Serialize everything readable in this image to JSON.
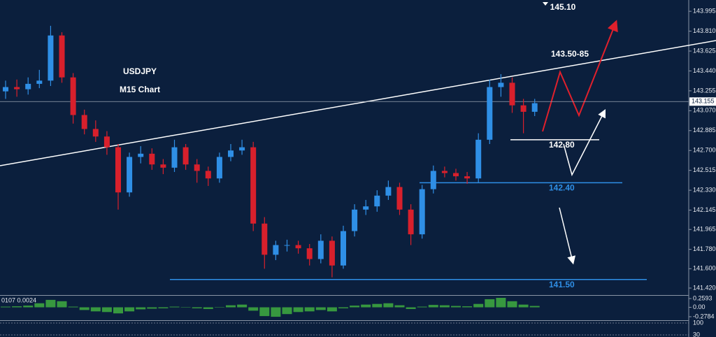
{
  "chart_data": {
    "type": "candlestick",
    "annotations": {
      "symbol": "USDJPY",
      "timeframe": "M15 Chart",
      "target_top": "145.10",
      "resistance": "143.50-85"
    },
    "current_price": 143.155,
    "levels": [
      {
        "value": 142.8,
        "label": "142.80"
      },
      {
        "value": 142.4,
        "label": "142.40"
      },
      {
        "value": 141.5,
        "label": "141.50"
      }
    ],
    "ylim": [
      141.355,
      144.1
    ],
    "yticks": [
      143.995,
      {
        "value": 143.81,
        "label": "143.810"
      },
      143.625,
      {
        "value": 143.44,
        "label": "143.440"
      },
      143.255,
      {
        "value": 143.07,
        "label": "143.070"
      },
      142.885,
      {
        "value": 142.7,
        "label": "142.700"
      },
      142.515,
      {
        "value": 142.33,
        "label": "142.330"
      },
      142.145,
      141.965,
      {
        "value": 141.78,
        "label": "141.780"
      },
      {
        "value": 141.6,
        "label": "141.600"
      },
      {
        "value": 141.42,
        "label": "141.420"
      }
    ],
    "up_color": "#2f8fe6",
    "down_color": "#d8202c",
    "open": [
      143.25,
      143.29,
      143.27,
      143.32,
      143.35,
      143.77,
      143.38,
      143.03,
      142.9,
      142.83,
      142.73,
      142.31,
      142.64,
      142.67,
      142.57,
      142.54,
      142.73,
      142.57,
      142.51,
      142.44,
      142.64,
      142.7,
      142.73,
      142.02,
      141.73,
      141.82,
      141.82,
      141.79,
      141.69,
      141.86,
      141.63,
      141.95,
      142.15,
      142.18,
      142.28,
      142.36,
      142.15,
      141.92,
      142.34,
      142.51,
      142.49,
      142.46,
      142.44,
      142.8,
      143.29,
      143.33,
      143.12,
      143.06
    ],
    "high": [
      143.35,
      143.36,
      143.38,
      143.45,
      143.86,
      143.8,
      143.42,
      143.08,
      142.98,
      142.88,
      142.76,
      142.68,
      142.74,
      142.72,
      142.62,
      142.8,
      142.76,
      142.62,
      142.55,
      142.68,
      142.76,
      142.8,
      142.78,
      142.08,
      141.86,
      141.87,
      141.86,
      141.83,
      141.92,
      141.9,
      142.0,
      142.2,
      142.24,
      142.33,
      142.42,
      142.4,
      142.2,
      142.38,
      142.56,
      142.55,
      142.53,
      142.5,
      142.86,
      143.36,
      143.41,
      143.38,
      143.18,
      143.18
    ],
    "low": [
      143.18,
      143.2,
      143.22,
      143.28,
      143.3,
      143.33,
      142.95,
      142.85,
      142.78,
      142.66,
      142.15,
      142.27,
      142.58,
      142.52,
      142.48,
      142.5,
      142.52,
      142.4,
      142.37,
      142.4,
      142.6,
      142.66,
      141.95,
      141.6,
      141.68,
      141.76,
      141.74,
      141.63,
      141.65,
      141.52,
      141.6,
      141.9,
      142.1,
      142.13,
      142.24,
      142.1,
      141.82,
      141.88,
      142.3,
      142.45,
      142.42,
      142.39,
      142.4,
      142.76,
      143.2,
      143.05,
      142.86,
      143.02
    ],
    "close": [
      143.29,
      143.27,
      143.32,
      143.35,
      143.77,
      143.38,
      143.03,
      142.9,
      142.83,
      142.73,
      142.31,
      142.64,
      142.67,
      142.57,
      142.54,
      142.73,
      142.57,
      142.51,
      142.44,
      142.64,
      142.7,
      142.73,
      142.02,
      141.73,
      141.82,
      141.82,
      141.79,
      141.69,
      141.86,
      141.63,
      141.95,
      142.15,
      142.18,
      142.28,
      142.36,
      142.15,
      141.92,
      142.34,
      142.51,
      142.49,
      142.46,
      142.44,
      142.8,
      143.29,
      143.33,
      143.12,
      143.06,
      143.14
    ],
    "oscillator": {
      "header": "0107 0.0024",
      "color": "#3fae3f",
      "ylim": [
        -0.382,
        0.342
      ],
      "yticks": [
        0.2593,
        {
          "value": 0,
          "label": "0.00"
        },
        -0.2784
      ],
      "values": [
        0.02,
        0.03,
        0.05,
        0.12,
        0.22,
        0.18,
        0.02,
        -0.08,
        -0.12,
        -0.14,
        -0.18,
        -0.12,
        -0.06,
        -0.04,
        -0.03,
        0.02,
        0.01,
        -0.03,
        -0.05,
        0.01,
        0.06,
        0.08,
        -0.1,
        -0.26,
        -0.28,
        -0.2,
        -0.14,
        -0.12,
        -0.08,
        -0.12,
        -0.03,
        0.05,
        0.08,
        0.1,
        0.12,
        0.06,
        -0.05,
        0.02,
        0.07,
        0.06,
        0.04,
        0.03,
        0.1,
        0.24,
        0.28,
        0.18,
        0.08,
        0.04
      ]
    },
    "lower_panel": {
      "yticks": [
        100,
        30
      ]
    }
  }
}
